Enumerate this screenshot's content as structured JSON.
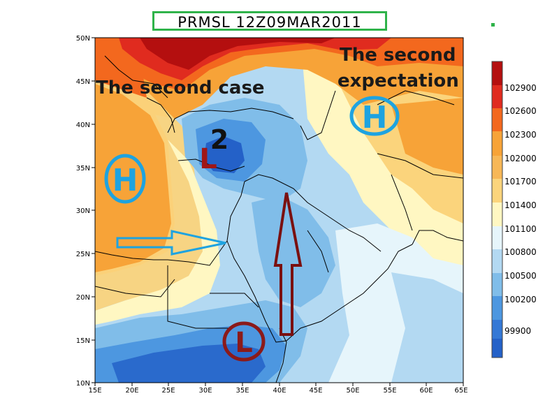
{
  "title": "PRMSL 12Z09MAR2011",
  "lat_labels": [
    "50N",
    "45N",
    "40N",
    "35N",
    "30N",
    "25N",
    "20N",
    "15N",
    "10N"
  ],
  "lon_labels": [
    "15E",
    "20E",
    "25E",
    "30E",
    "35E",
    "40E",
    "45E",
    "50E",
    "55E",
    "60E",
    "65E"
  ],
  "colorbar": {
    "labels": [
      "102900",
      "102600",
      "102300",
      "102000",
      "101700",
      "101400",
      "101100",
      "100800",
      "100500",
      "100200",
      "99900"
    ],
    "colors": [
      "#b40f0f",
      "#e02b1f",
      "#f3681e",
      "#f7a338",
      "#fbd47c",
      "#fff7c2",
      "#e6f5fb",
      "#b3d9f2",
      "#80bde9",
      "#4d97e0",
      "#2461c8"
    ]
  },
  "annotations": {
    "second_case": "The second case",
    "second_expectation_line1": "The second",
    "second_expectation_line2": "expectation",
    "h_west": "H",
    "h_east": "H",
    "l_north": "L",
    "l_north_number": "2",
    "l_south": "L"
  },
  "annotation_colors": {
    "high": "#1ea3e0",
    "low_north": "#a01616",
    "low_south": "#8b1a1a",
    "arrow_cyan": "#1ea3e0",
    "arrow_red": "#7a1010"
  }
}
